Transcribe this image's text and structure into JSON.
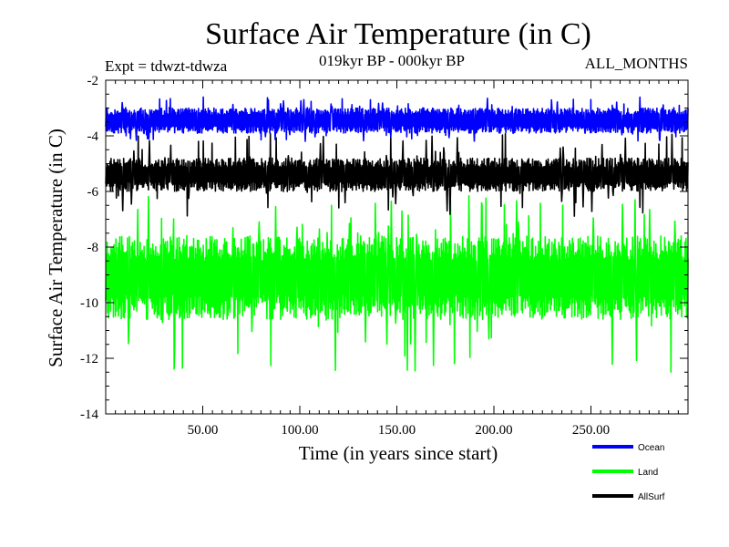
{
  "chart_data": {
    "type": "line",
    "title": "Surface Air Temperature (in C)",
    "subtitle_left": "Expt = tdwzt-tdwza",
    "subtitle_center": "019kyr BP - 000kyr BP",
    "subtitle_right": "ALL_MONTHS",
    "xlabel": "Time (in years since start)",
    "ylabel": "Surface Air Temperature (in C)",
    "xlim": [
      0,
      300
    ],
    "ylim": [
      -14,
      -2
    ],
    "x_ticks": [
      50,
      100,
      150,
      200,
      250
    ],
    "x_tick_labels": [
      "50.00",
      "100.00",
      "150.00",
      "200.00",
      "250.00"
    ],
    "y_ticks": [
      -14,
      -12,
      -10,
      -8,
      -6,
      -4,
      -2
    ],
    "y_tick_labels": [
      "-14",
      "-12",
      "-10",
      "-8",
      "-6",
      "-4",
      "-2"
    ],
    "grid": false,
    "legend_position": "bottom-right",
    "series": [
      {
        "name": "Ocean",
        "color": "#0000ff",
        "mean": -3.4,
        "band_low": -3.9,
        "band_high": -3.0,
        "min": -4.2,
        "max": -2.6
      },
      {
        "name": "Land",
        "color": "#00ff00",
        "mean": -9.1,
        "band_low": -10.6,
        "band_high": -7.6,
        "min": -12.5,
        "max": -6.1
      },
      {
        "name": "AllSurf",
        "color": "#000000",
        "mean": -5.4,
        "band_low": -6.0,
        "band_high": -4.8,
        "min": -6.9,
        "max": -3.9
      }
    ]
  }
}
